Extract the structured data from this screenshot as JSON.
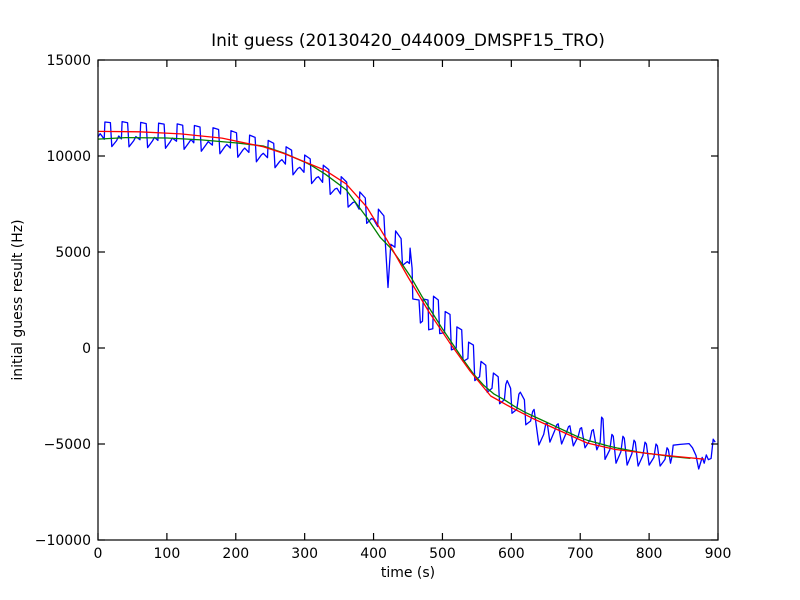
{
  "figure": {
    "background": "#ffffff",
    "frame_color": "#000000"
  },
  "chart_data": {
    "type": "line",
    "title": "Init guess (20130420_044009_DMSPF15_TRO)",
    "xlabel": "time (s)",
    "ylabel": "initial guess result (Hz)",
    "xlim": [
      0,
      900
    ],
    "ylim": [
      -10000,
      15000
    ],
    "xticks": [
      0,
      100,
      200,
      300,
      400,
      500,
      600,
      700,
      800,
      900
    ],
    "xtick_labels": [
      "0",
      "100",
      "200",
      "300",
      "400",
      "500",
      "600",
      "700",
      "800",
      "900"
    ],
    "yticks": [
      -10000,
      -5000,
      0,
      5000,
      10000,
      15000
    ],
    "ytick_labels": [
      "−10000",
      "−5000",
      "0",
      "5000",
      "10000",
      "15000"
    ],
    "grid": false,
    "legend": "none",
    "series": [
      {
        "name": "noisy-data-blue",
        "color": "#0000ff",
        "points": [
          [
            0,
            11000
          ],
          [
            3,
            11160
          ],
          [
            6,
            11030
          ],
          [
            9,
            10870
          ],
          [
            10,
            11770
          ],
          [
            18,
            11740
          ],
          [
            20,
            10490
          ],
          [
            27,
            10800
          ],
          [
            30,
            11040
          ],
          [
            34,
            10890
          ],
          [
            35,
            11790
          ],
          [
            43,
            11730
          ],
          [
            45,
            10480
          ],
          [
            52,
            10800
          ],
          [
            55,
            11010
          ],
          [
            61,
            10850
          ],
          [
            62,
            11750
          ],
          [
            70,
            11690
          ],
          [
            72,
            10440
          ],
          [
            79,
            10780
          ],
          [
            82,
            10970
          ],
          [
            87,
            10810
          ],
          [
            88,
            11710
          ],
          [
            96,
            11660
          ],
          [
            98,
            10400
          ],
          [
            105,
            10750
          ],
          [
            108,
            10930
          ],
          [
            114,
            10770
          ],
          [
            115,
            11670
          ],
          [
            123,
            11600
          ],
          [
            125,
            10350
          ],
          [
            132,
            10700
          ],
          [
            135,
            10860
          ],
          [
            139,
            10690
          ],
          [
            140,
            11590
          ],
          [
            148,
            11510
          ],
          [
            150,
            10250
          ],
          [
            157,
            10600
          ],
          [
            160,
            10750
          ],
          [
            166,
            10570
          ],
          [
            167,
            11470
          ],
          [
            175,
            11380
          ],
          [
            177,
            10120
          ],
          [
            184,
            10480
          ],
          [
            187,
            10600
          ],
          [
            192,
            10410
          ],
          [
            193,
            11320
          ],
          [
            201,
            11210
          ],
          [
            203,
            9940
          ],
          [
            210,
            10300
          ],
          [
            213,
            10410
          ],
          [
            219,
            10190
          ],
          [
            220,
            11090
          ],
          [
            228,
            10970
          ],
          [
            230,
            9700
          ],
          [
            237,
            10050
          ],
          [
            240,
            10140
          ],
          [
            246,
            9910
          ],
          [
            247,
            10810
          ],
          [
            255,
            10660
          ],
          [
            257,
            9390
          ],
          [
            264,
            9730
          ],
          [
            267,
            9810
          ],
          [
            272,
            9580
          ],
          [
            273,
            10480
          ],
          [
            281,
            10300
          ],
          [
            283,
            9020
          ],
          [
            290,
            9350
          ],
          [
            293,
            9410
          ],
          [
            299,
            9150
          ],
          [
            300,
            10050
          ],
          [
            308,
            9850
          ],
          [
            310,
            8560
          ],
          [
            317,
            8870
          ],
          [
            320,
            8920
          ],
          [
            326,
            8630
          ],
          [
            327,
            9520
          ],
          [
            335,
            9290
          ],
          [
            337,
            8000
          ],
          [
            344,
            8280
          ],
          [
            347,
            8320
          ],
          [
            352,
            8020
          ],
          [
            353,
            8920
          ],
          [
            361,
            8640
          ],
          [
            363,
            7340
          ],
          [
            370,
            7580
          ],
          [
            373,
            7610
          ],
          [
            379,
            7230
          ],
          [
            380,
            8130
          ],
          [
            388,
            7810
          ],
          [
            390,
            6490
          ],
          [
            397,
            6750
          ],
          [
            400,
            6700
          ],
          [
            406,
            6330
          ],
          [
            407,
            7230
          ],
          [
            415,
            6880
          ],
          [
            417,
            5500
          ],
          [
            421,
            3150
          ],
          [
            425,
            5400
          ],
          [
            431,
            5250
          ],
          [
            432,
            6100
          ],
          [
            440,
            5700
          ],
          [
            442,
            4300
          ],
          [
            449,
            4500
          ],
          [
            452,
            4400
          ],
          [
            453,
            5200
          ],
          [
            456,
            4150
          ],
          [
            457,
            2550
          ],
          [
            466,
            2500
          ],
          [
            468,
            1300
          ],
          [
            471,
            1400
          ],
          [
            472,
            2550
          ],
          [
            479,
            2500
          ],
          [
            480,
            950
          ],
          [
            486,
            1000
          ],
          [
            487,
            2700
          ],
          [
            494,
            2500
          ],
          [
            496,
            750
          ],
          [
            503,
            800
          ],
          [
            504,
            1900
          ],
          [
            511,
            1750
          ],
          [
            513,
            -100
          ],
          [
            520,
            0
          ],
          [
            521,
            1100
          ],
          [
            528,
            950
          ],
          [
            530,
            -700
          ],
          [
            537,
            -550
          ],
          [
            538,
            300
          ],
          [
            545,
            150
          ],
          [
            547,
            -1700
          ],
          [
            554,
            -1500
          ],
          [
            556,
            -700
          ],
          [
            563,
            -900
          ],
          [
            565,
            -2300
          ],
          [
            572,
            -2100
          ],
          [
            574,
            -1300
          ],
          [
            581,
            -1500
          ],
          [
            583,
            -2900
          ],
          [
            590,
            -2700
          ],
          [
            592,
            -1900
          ],
          [
            594,
            -1700
          ],
          [
            599,
            -2100
          ],
          [
            601,
            -3400
          ],
          [
            608,
            -3200
          ],
          [
            611,
            -2400
          ],
          [
            613,
            -2300
          ],
          [
            619,
            -2700
          ],
          [
            621,
            -4000
          ],
          [
            628,
            -3800
          ],
          [
            631,
            -3300
          ],
          [
            633,
            -3200
          ],
          [
            640,
            -5050
          ],
          [
            647,
            -4500
          ],
          [
            650,
            -3950
          ],
          [
            652,
            -3900
          ],
          [
            656,
            -4900
          ],
          [
            663,
            -4300
          ],
          [
            666,
            -4000
          ],
          [
            668,
            -3950
          ],
          [
            673,
            -5000
          ],
          [
            680,
            -4400
          ],
          [
            683,
            -4100
          ],
          [
            685,
            -4050
          ],
          [
            690,
            -5100
          ],
          [
            697,
            -4600
          ],
          [
            700,
            -4200
          ],
          [
            702,
            -4150
          ],
          [
            707,
            -5200
          ],
          [
            714,
            -4800
          ],
          [
            717,
            -4300
          ],
          [
            719,
            -4250
          ],
          [
            724,
            -5300
          ],
          [
            729,
            -4900
          ],
          [
            731,
            -3600
          ],
          [
            733,
            -3700
          ],
          [
            736,
            -5800
          ],
          [
            743,
            -5300
          ],
          [
            746,
            -4500
          ],
          [
            748,
            -4600
          ],
          [
            752,
            -6000
          ],
          [
            759,
            -5400
          ],
          [
            762,
            -4600
          ],
          [
            764,
            -4700
          ],
          [
            768,
            -6100
          ],
          [
            775,
            -5500
          ],
          [
            778,
            -4800
          ],
          [
            780,
            -4900
          ],
          [
            784,
            -6150
          ],
          [
            791,
            -5600
          ],
          [
            794,
            -4900
          ],
          [
            796,
            -5000
          ],
          [
            800,
            -6100
          ],
          [
            807,
            -5700
          ],
          [
            810,
            -5000
          ],
          [
            812,
            -5100
          ],
          [
            816,
            -6150
          ],
          [
            823,
            -5800
          ],
          [
            826,
            -5200
          ],
          [
            828,
            -5300
          ],
          [
            831,
            -6000
          ],
          [
            833,
            -5700
          ],
          [
            835,
            -5060
          ],
          [
            845,
            -5020
          ],
          [
            858,
            -4980
          ],
          [
            863,
            -5200
          ],
          [
            868,
            -5600
          ],
          [
            872,
            -6300
          ],
          [
            877,
            -5700
          ],
          [
            880,
            -6000
          ],
          [
            883,
            -5570
          ],
          [
            886,
            -5820
          ],
          [
            890,
            -5750
          ],
          [
            893,
            -4750
          ],
          [
            896,
            -4900
          ]
        ]
      },
      {
        "name": "smooth-curve-green",
        "color": "#008000",
        "points": [
          [
            0,
            10880
          ],
          [
            40,
            10960
          ],
          [
            100,
            10940
          ],
          [
            150,
            10840
          ],
          [
            200,
            10680
          ],
          [
            240,
            10520
          ],
          [
            270,
            10150
          ],
          [
            300,
            9680
          ],
          [
            310,
            9500
          ],
          [
            330,
            9050
          ],
          [
            360,
            8250
          ],
          [
            390,
            6800
          ],
          [
            410,
            5750
          ],
          [
            425,
            5200
          ],
          [
            440,
            4450
          ],
          [
            455,
            3650
          ],
          [
            470,
            2700
          ],
          [
            485,
            1850
          ],
          [
            500,
            1000
          ],
          [
            515,
            200
          ],
          [
            530,
            -600
          ],
          [
            545,
            -1350
          ],
          [
            560,
            -1950
          ],
          [
            575,
            -2400
          ],
          [
            590,
            -2700
          ],
          [
            605,
            -3050
          ],
          [
            620,
            -3350
          ],
          [
            635,
            -3600
          ],
          [
            650,
            -3850
          ],
          [
            665,
            -4100
          ],
          [
            680,
            -4350
          ],
          [
            695,
            -4600
          ],
          [
            710,
            -4800
          ],
          [
            725,
            -4950
          ],
          [
            740,
            -5100
          ],
          [
            755,
            -5220
          ],
          [
            770,
            -5320
          ],
          [
            785,
            -5420
          ],
          [
            800,
            -5500
          ],
          [
            815,
            -5570
          ],
          [
            830,
            -5640
          ],
          [
            845,
            -5700
          ],
          [
            860,
            -5750
          ]
        ]
      },
      {
        "name": "smooth-curve-red",
        "color": "#ff0000",
        "points": [
          [
            0,
            11280
          ],
          [
            60,
            11260
          ],
          [
            120,
            11150
          ],
          [
            180,
            10930
          ],
          [
            240,
            10480
          ],
          [
            270,
            10130
          ],
          [
            300,
            9700
          ],
          [
            330,
            9250
          ],
          [
            360,
            8550
          ],
          [
            390,
            7350
          ],
          [
            420,
            5600
          ],
          [
            450,
            3700
          ],
          [
            480,
            1900
          ],
          [
            510,
            300
          ],
          [
            540,
            -1200
          ],
          [
            570,
            -2500
          ],
          [
            600,
            -3100
          ],
          [
            630,
            -3650
          ],
          [
            670,
            -4300
          ],
          [
            710,
            -4950
          ],
          [
            750,
            -5280
          ],
          [
            800,
            -5500
          ],
          [
            840,
            -5650
          ],
          [
            880,
            -5790
          ]
        ]
      }
    ]
  }
}
